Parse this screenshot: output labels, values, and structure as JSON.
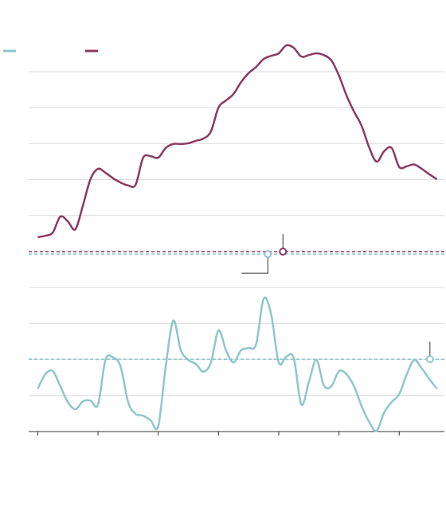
{
  "chart_data": {
    "type": "line",
    "x": [
      0,
      0.125,
      0.25,
      0.375,
      0.5,
      0.625,
      0.75,
      0.875,
      1,
      1.125,
      1.25,
      1.375,
      1.5,
      1.625,
      1.75,
      1.875,
      2,
      2.125,
      2.25,
      2.375,
      2.5,
      2.625,
      2.75,
      2.875,
      3,
      3.125,
      3.25,
      3.375,
      3.5,
      3.625,
      3.75,
      3.875,
      4,
      4.125,
      4.25,
      4.375,
      4.5,
      4.625,
      4.75,
      4.875,
      5,
      5.125,
      5.25,
      5.375,
      5.5,
      5.625,
      5.75,
      5.875,
      6,
      6.125,
      6.25,
      6.375,
      6.5,
      6.625
    ],
    "series": [
      {
        "color": "#8ec6cc",
        "values": [
          1.19,
          1.59,
          1.68,
          1.26,
          0.82,
          0.62,
          0.84,
          0.86,
          0.75,
          1.99,
          2.06,
          1.81,
          0.82,
          0.49,
          0.44,
          0.31,
          0.15,
          1.81,
          3.08,
          2.26,
          1.99,
          1.88,
          1.66,
          1.92,
          2.81,
          2.26,
          1.92,
          2.26,
          2.32,
          2.43,
          3.69,
          3.25,
          1.92,
          2.08,
          2.04,
          0.75,
          1.37,
          1.99,
          1.28,
          1.26,
          1.68,
          1.59,
          1.26,
          0.71,
          0.27,
          0.02,
          0.53,
          0.82,
          1.04,
          1.59,
          1.99,
          1.75,
          1.46,
          1.19
        ]
      },
      {
        "color": "#8b3a62",
        "values": [
          5.4,
          5.44,
          5.53,
          5.97,
          5.84,
          5.62,
          6.28,
          7.01,
          7.3,
          7.19,
          7.04,
          6.92,
          6.84,
          6.86,
          7.61,
          7.65,
          7.61,
          7.88,
          7.99,
          7.99,
          8.01,
          8.08,
          8.14,
          8.34,
          9.0,
          9.2,
          9.38,
          9.71,
          9.96,
          10.13,
          10.35,
          10.44,
          10.51,
          10.73,
          10.66,
          10.42,
          10.46,
          10.51,
          10.46,
          10.31,
          9.89,
          9.34,
          8.89,
          8.5,
          7.9,
          7.5,
          7.79,
          7.88,
          7.35,
          7.37,
          7.42,
          7.3,
          7.15,
          7.01
        ]
      }
    ],
    "xlim": [
      -0.15,
      6.75
    ],
    "xticks": [
      0,
      1,
      2,
      3,
      4,
      5,
      6
    ],
    "ylim": [
      0,
      11.5
    ],
    "yticks": [
      1,
      2,
      3,
      4,
      5,
      6,
      7,
      8,
      9,
      10
    ],
    "grid": true,
    "reference_lines": [
      {
        "value": 5.0,
        "color": "#8b3a62"
      },
      {
        "value": 4.93,
        "color": "#8ec6cc"
      },
      {
        "value": 2.01,
        "color": "#8ec6cc"
      }
    ],
    "markers": [
      {
        "x": 4.07,
        "y": 5.0,
        "color": "#8b3a62"
      },
      {
        "x": 3.82,
        "y": 4.93,
        "color": "#8ec6cc"
      },
      {
        "x": 6.51,
        "y": 2.01,
        "color": "#8ec6cc"
      }
    ]
  }
}
